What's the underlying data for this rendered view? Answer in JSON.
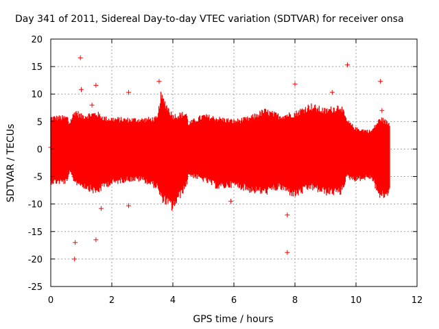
{
  "chart_data": {
    "type": "scatter",
    "title": "Day 341 of 2011, Sidereal Day-to-day VTEC variation (SDTVAR) for receiver onsa",
    "xlabel": "GPS time / hours",
    "ylabel": "SDTVAR / TECUs",
    "xlim": [
      0,
      12
    ],
    "ylim": [
      -25,
      20
    ],
    "xticks": [
      0,
      2,
      4,
      6,
      8,
      10,
      12
    ],
    "yticks": [
      -25,
      -20,
      -15,
      -10,
      -5,
      0,
      5,
      10,
      15,
      20
    ],
    "xtick_labels": [
      "0",
      "2",
      "4",
      "6",
      "8",
      "10",
      "12"
    ],
    "ytick_labels": [
      "-25",
      "-20",
      "-15",
      "-10",
      "-5",
      "0",
      "5",
      "10",
      "15",
      "20"
    ],
    "grid": true,
    "marker": "+",
    "color": "#ff0000",
    "series": [
      {
        "name": "SDTVAR",
        "envelope": {
          "x": [
            0.0,
            0.55,
            0.6,
            0.8,
            1.0,
            1.5,
            1.8,
            2.5,
            3.0,
            3.5,
            3.6,
            4.0,
            4.45,
            4.5,
            5.0,
            5.5,
            6.0,
            6.5,
            7.0,
            7.5,
            8.0,
            8.5,
            9.0,
            9.5,
            9.7,
            10.0,
            10.5,
            10.8,
            11.1
          ],
          "high": [
            6.2,
            6.2,
            5.0,
            7.5,
            6.5,
            7.0,
            6.0,
            5.8,
            5.8,
            6.0,
            10.5,
            6.5,
            7.0,
            5.0,
            6.5,
            6.0,
            5.5,
            6.0,
            7.5,
            6.5,
            7.0,
            8.5,
            7.5,
            8.5,
            5.5,
            4.0,
            3.5,
            6.0,
            5.0
          ],
          "low": [
            -6.5,
            -6.5,
            -4.5,
            -6.5,
            -7.0,
            -8.5,
            -7.0,
            -6.0,
            -6.0,
            -7.5,
            -9.5,
            -11.5,
            -7.0,
            -5.0,
            -6.0,
            -7.5,
            -7.0,
            -8.0,
            -8.5,
            -7.5,
            -9.0,
            -7.5,
            -8.5,
            -8.5,
            -5.5,
            -6.0,
            -5.5,
            -9.5,
            -8.5
          ]
        },
        "outliers": [
          {
            "x": 0.0,
            "y": 0.3
          },
          {
            "x": 0.97,
            "y": 16.6
          },
          {
            "x": 2.55,
            "y": 10.3
          },
          {
            "x": 1.48,
            "y": 11.6
          },
          {
            "x": 1.65,
            "y": -10.8
          },
          {
            "x": 1.48,
            "y": -16.5
          },
          {
            "x": 0.78,
            "y": -20.0
          },
          {
            "x": 0.8,
            "y": -17.0
          },
          {
            "x": 1.0,
            "y": 10.8
          },
          {
            "x": 1.35,
            "y": 8.0
          },
          {
            "x": 2.55,
            "y": -10.3
          },
          {
            "x": 3.55,
            "y": 12.3
          },
          {
            "x": 7.75,
            "y": -18.8
          },
          {
            "x": 7.75,
            "y": -12.0
          },
          {
            "x": 8.0,
            "y": 11.8
          },
          {
            "x": 9.22,
            "y": 10.3
          },
          {
            "x": 9.72,
            "y": 15.3
          },
          {
            "x": 10.8,
            "y": 12.3
          },
          {
            "x": 10.85,
            "y": 7.0
          },
          {
            "x": 5.9,
            "y": -9.5
          }
        ]
      }
    ]
  }
}
